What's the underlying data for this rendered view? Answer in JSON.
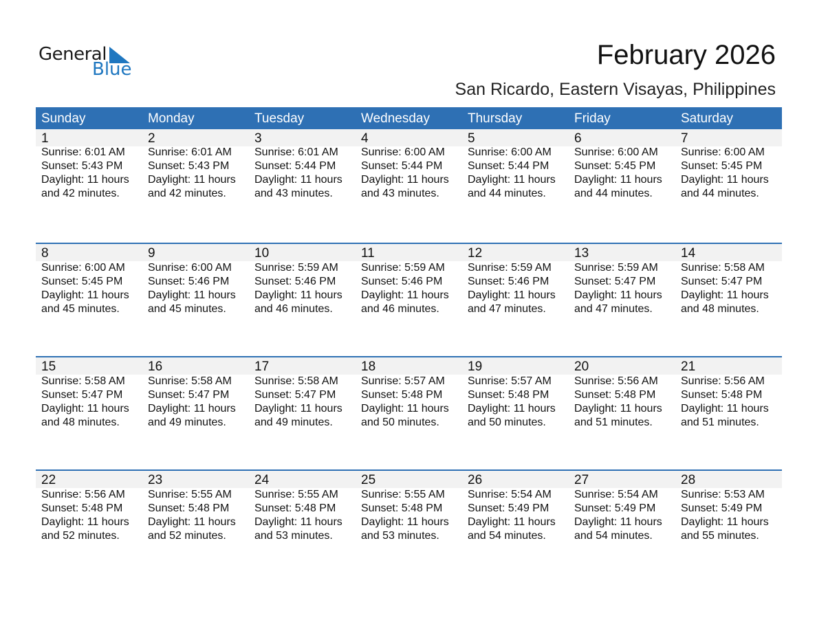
{
  "logo": {
    "text1": "General",
    "text2": "Blue",
    "accent": "#1f77c0"
  },
  "title": "February 2026",
  "subtitle": "San Ricardo, Eastern Visayas, Philippines",
  "colors": {
    "header": "#2e70b4",
    "band": "#f2f2f2"
  },
  "weekdays": [
    "Sunday",
    "Monday",
    "Tuesday",
    "Wednesday",
    "Thursday",
    "Friday",
    "Saturday"
  ],
  "weeks": [
    [
      {
        "day": "1",
        "sunrise": "Sunrise: 6:01 AM",
        "sunset": "Sunset: 5:43 PM",
        "daylight": "Daylight: 11 hours",
        "minutes": "and 42 minutes."
      },
      {
        "day": "2",
        "sunrise": "Sunrise: 6:01 AM",
        "sunset": "Sunset: 5:43 PM",
        "daylight": "Daylight: 11 hours",
        "minutes": "and 42 minutes."
      },
      {
        "day": "3",
        "sunrise": "Sunrise: 6:01 AM",
        "sunset": "Sunset: 5:44 PM",
        "daylight": "Daylight: 11 hours",
        "minutes": "and 43 minutes."
      },
      {
        "day": "4",
        "sunrise": "Sunrise: 6:00 AM",
        "sunset": "Sunset: 5:44 PM",
        "daylight": "Daylight: 11 hours",
        "minutes": "and 43 minutes."
      },
      {
        "day": "5",
        "sunrise": "Sunrise: 6:00 AM",
        "sunset": "Sunset: 5:44 PM",
        "daylight": "Daylight: 11 hours",
        "minutes": "and 44 minutes."
      },
      {
        "day": "6",
        "sunrise": "Sunrise: 6:00 AM",
        "sunset": "Sunset: 5:45 PM",
        "daylight": "Daylight: 11 hours",
        "minutes": "and 44 minutes."
      },
      {
        "day": "7",
        "sunrise": "Sunrise: 6:00 AM",
        "sunset": "Sunset: 5:45 PM",
        "daylight": "Daylight: 11 hours",
        "minutes": "and 44 minutes."
      }
    ],
    [
      {
        "day": "8",
        "sunrise": "Sunrise: 6:00 AM",
        "sunset": "Sunset: 5:45 PM",
        "daylight": "Daylight: 11 hours",
        "minutes": "and 45 minutes."
      },
      {
        "day": "9",
        "sunrise": "Sunrise: 6:00 AM",
        "sunset": "Sunset: 5:46 PM",
        "daylight": "Daylight: 11 hours",
        "minutes": "and 45 minutes."
      },
      {
        "day": "10",
        "sunrise": "Sunrise: 5:59 AM",
        "sunset": "Sunset: 5:46 PM",
        "daylight": "Daylight: 11 hours",
        "minutes": "and 46 minutes."
      },
      {
        "day": "11",
        "sunrise": "Sunrise: 5:59 AM",
        "sunset": "Sunset: 5:46 PM",
        "daylight": "Daylight: 11 hours",
        "minutes": "and 46 minutes."
      },
      {
        "day": "12",
        "sunrise": "Sunrise: 5:59 AM",
        "sunset": "Sunset: 5:46 PM",
        "daylight": "Daylight: 11 hours",
        "minutes": "and 47 minutes."
      },
      {
        "day": "13",
        "sunrise": "Sunrise: 5:59 AM",
        "sunset": "Sunset: 5:47 PM",
        "daylight": "Daylight: 11 hours",
        "minutes": "and 47 minutes."
      },
      {
        "day": "14",
        "sunrise": "Sunrise: 5:58 AM",
        "sunset": "Sunset: 5:47 PM",
        "daylight": "Daylight: 11 hours",
        "minutes": "and 48 minutes."
      }
    ],
    [
      {
        "day": "15",
        "sunrise": "Sunrise: 5:58 AM",
        "sunset": "Sunset: 5:47 PM",
        "daylight": "Daylight: 11 hours",
        "minutes": "and 48 minutes."
      },
      {
        "day": "16",
        "sunrise": "Sunrise: 5:58 AM",
        "sunset": "Sunset: 5:47 PM",
        "daylight": "Daylight: 11 hours",
        "minutes": "and 49 minutes."
      },
      {
        "day": "17",
        "sunrise": "Sunrise: 5:58 AM",
        "sunset": "Sunset: 5:47 PM",
        "daylight": "Daylight: 11 hours",
        "minutes": "and 49 minutes."
      },
      {
        "day": "18",
        "sunrise": "Sunrise: 5:57 AM",
        "sunset": "Sunset: 5:48 PM",
        "daylight": "Daylight: 11 hours",
        "minutes": "and 50 minutes."
      },
      {
        "day": "19",
        "sunrise": "Sunrise: 5:57 AM",
        "sunset": "Sunset: 5:48 PM",
        "daylight": "Daylight: 11 hours",
        "minutes": "and 50 minutes."
      },
      {
        "day": "20",
        "sunrise": "Sunrise: 5:56 AM",
        "sunset": "Sunset: 5:48 PM",
        "daylight": "Daylight: 11 hours",
        "minutes": "and 51 minutes."
      },
      {
        "day": "21",
        "sunrise": "Sunrise: 5:56 AM",
        "sunset": "Sunset: 5:48 PM",
        "daylight": "Daylight: 11 hours",
        "minutes": "and 51 minutes."
      }
    ],
    [
      {
        "day": "22",
        "sunrise": "Sunrise: 5:56 AM",
        "sunset": "Sunset: 5:48 PM",
        "daylight": "Daylight: 11 hours",
        "minutes": "and 52 minutes."
      },
      {
        "day": "23",
        "sunrise": "Sunrise: 5:55 AM",
        "sunset": "Sunset: 5:48 PM",
        "daylight": "Daylight: 11 hours",
        "minutes": "and 52 minutes."
      },
      {
        "day": "24",
        "sunrise": "Sunrise: 5:55 AM",
        "sunset": "Sunset: 5:48 PM",
        "daylight": "Daylight: 11 hours",
        "minutes": "and 53 minutes."
      },
      {
        "day": "25",
        "sunrise": "Sunrise: 5:55 AM",
        "sunset": "Sunset: 5:48 PM",
        "daylight": "Daylight: 11 hours",
        "minutes": "and 53 minutes."
      },
      {
        "day": "26",
        "sunrise": "Sunrise: 5:54 AM",
        "sunset": "Sunset: 5:49 PM",
        "daylight": "Daylight: 11 hours",
        "minutes": "and 54 minutes."
      },
      {
        "day": "27",
        "sunrise": "Sunrise: 5:54 AM",
        "sunset": "Sunset: 5:49 PM",
        "daylight": "Daylight: 11 hours",
        "minutes": "and 54 minutes."
      },
      {
        "day": "28",
        "sunrise": "Sunrise: 5:53 AM",
        "sunset": "Sunset: 5:49 PM",
        "daylight": "Daylight: 11 hours",
        "minutes": "and 55 minutes."
      }
    ]
  ]
}
